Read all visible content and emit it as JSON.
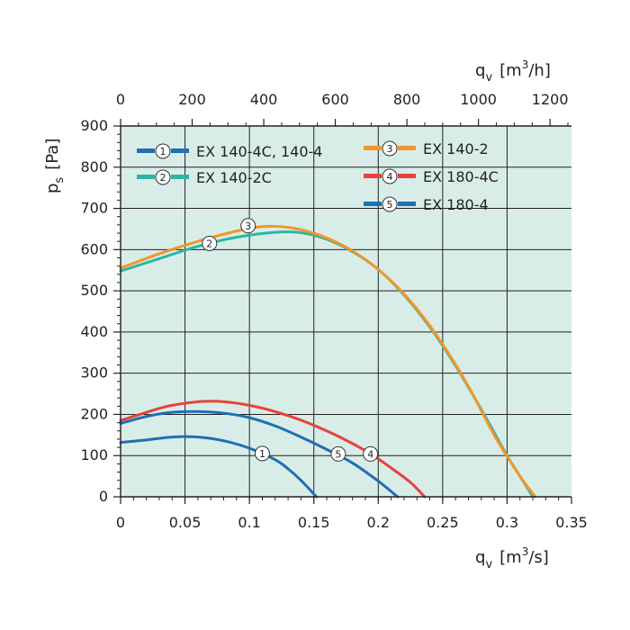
{
  "chart_data": {
    "type": "line",
    "title": "",
    "x_axis": {
      "label_main": "q",
      "label_sub": "v",
      "unit": "[m",
      "unit_sup": "3",
      "unit_end": "/s]",
      "range": [
        0,
        0.35
      ],
      "ticks": [
        "0",
        "0.05",
        "0.1",
        "0.15",
        "0.2",
        "0.25",
        "0.3",
        "0.35"
      ]
    },
    "x_axis_top": {
      "label_main": "q",
      "label_sub": "v",
      "unit": "[m",
      "unit_sup": "3",
      "unit_end": "/h]",
      "range": [
        0,
        1260
      ],
      "ticks": [
        "0",
        "200",
        "400",
        "600",
        "800",
        "1000",
        "1200"
      ]
    },
    "y_axis": {
      "label_main": "p",
      "label_sub": "s",
      "unit": "[Pa]",
      "range": [
        0,
        900
      ],
      "ticks": [
        "0",
        "100",
        "200",
        "300",
        "400",
        "500",
        "600",
        "700",
        "800",
        "900"
      ]
    },
    "grid": true,
    "legend_position": "top",
    "series": [
      {
        "id": "1",
        "name": "EX 140-4C, 140-4",
        "color": "#1f6fb5",
        "marker_at": [
          0.11,
          105
        ],
        "points": [
          [
            0,
            132
          ],
          [
            0.02,
            138
          ],
          [
            0.04,
            145
          ],
          [
            0.06,
            145
          ],
          [
            0.08,
            136
          ],
          [
            0.1,
            118
          ],
          [
            0.12,
            90
          ],
          [
            0.13,
            68
          ],
          [
            0.14,
            40
          ],
          [
            0.152,
            0
          ]
        ]
      },
      {
        "id": "2",
        "name": "EX 140-2C",
        "color": "#2db5a5",
        "marker_at": [
          0.069,
          615
        ],
        "points": [
          [
            0,
            548
          ],
          [
            0.03,
            578
          ],
          [
            0.06,
            608
          ],
          [
            0.09,
            630
          ],
          [
            0.12,
            642
          ],
          [
            0.14,
            641
          ],
          [
            0.16,
            625
          ],
          [
            0.18,
            595
          ],
          [
            0.2,
            552
          ],
          [
            0.22,
            490
          ],
          [
            0.24,
            412
          ],
          [
            0.26,
            318
          ],
          [
            0.28,
            212
          ],
          [
            0.3,
            100
          ],
          [
            0.31,
            50
          ],
          [
            0.32,
            0
          ]
        ]
      },
      {
        "id": "3",
        "name": "EX 140-2",
        "color": "#f2962a",
        "marker_at": [
          0.099,
          658
        ],
        "points": [
          [
            0,
            555
          ],
          [
            0.03,
            590
          ],
          [
            0.06,
            620
          ],
          [
            0.09,
            645
          ],
          [
            0.11,
            656
          ],
          [
            0.13,
            654
          ],
          [
            0.15,
            640
          ],
          [
            0.17,
            614
          ],
          [
            0.19,
            576
          ],
          [
            0.21,
            524
          ],
          [
            0.23,
            456
          ],
          [
            0.25,
            370
          ],
          [
            0.27,
            268
          ],
          [
            0.29,
            150
          ],
          [
            0.31,
            50
          ],
          [
            0.322,
            0
          ]
        ]
      },
      {
        "id": "4",
        "name": "EX 180-4C",
        "color": "#e8423a",
        "marker_at": [
          0.194,
          104
        ],
        "points": [
          [
            0,
            185
          ],
          [
            0.02,
            205
          ],
          [
            0.04,
            222
          ],
          [
            0.07,
            232
          ],
          [
            0.1,
            222
          ],
          [
            0.13,
            197
          ],
          [
            0.16,
            160
          ],
          [
            0.19,
            112
          ],
          [
            0.21,
            70
          ],
          [
            0.225,
            35
          ],
          [
            0.236,
            0
          ]
        ]
      },
      {
        "id": "5",
        "name": "EX 180-4",
        "color": "#1f6fb5",
        "marker_at": [
          0.169,
          104
        ],
        "points": [
          [
            0,
            178
          ],
          [
            0.02,
            195
          ],
          [
            0.04,
            205
          ],
          [
            0.06,
            207
          ],
          [
            0.08,
            203
          ],
          [
            0.1,
            192
          ],
          [
            0.12,
            172
          ],
          [
            0.14,
            145
          ],
          [
            0.16,
            115
          ],
          [
            0.18,
            82
          ],
          [
            0.2,
            38
          ],
          [
            0.215,
            0
          ]
        ]
      }
    ]
  }
}
